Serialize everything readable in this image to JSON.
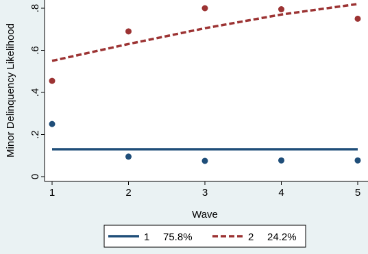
{
  "chart_data": {
    "type": "line",
    "xlabel": "Wave",
    "ylabel": "Minor Delinquency Likelihood",
    "xlim": [
      1,
      5
    ],
    "ylim": [
      0,
      0.8
    ],
    "x_ticks": [
      1,
      2,
      3,
      4,
      5
    ],
    "x_tick_labels": [
      "1",
      "2",
      "3",
      "4",
      "5"
    ],
    "y_ticks": [
      0,
      0.2,
      0.4,
      0.6,
      0.8
    ],
    "y_tick_labels": [
      "0",
      ".2",
      ".4",
      ".6",
      ".8"
    ],
    "grid": "horizontal, off",
    "legend_position": "bottom",
    "series": [
      {
        "name": "1",
        "share": "75.8%",
        "color": "#1f4e79",
        "line_style": "solid",
        "fitted_line": {
          "x": [
            1,
            5
          ],
          "y": [
            0.13,
            0.13
          ]
        },
        "observed": {
          "x": [
            1,
            2,
            3,
            4,
            5
          ],
          "y": [
            0.25,
            0.095,
            0.075,
            0.077,
            0.077
          ]
        }
      },
      {
        "name": "2",
        "share": "24.2%",
        "color": "#9c3333",
        "line_style": "dashed",
        "fitted_line": {
          "x": [
            1,
            2,
            3,
            4,
            5
          ],
          "y": [
            0.55,
            0.63,
            0.705,
            0.77,
            0.82
          ]
        },
        "observed": {
          "x": [
            1,
            2,
            3,
            4,
            5
          ],
          "y": [
            0.455,
            0.69,
            0.8,
            0.795,
            0.75
          ]
        }
      }
    ]
  }
}
